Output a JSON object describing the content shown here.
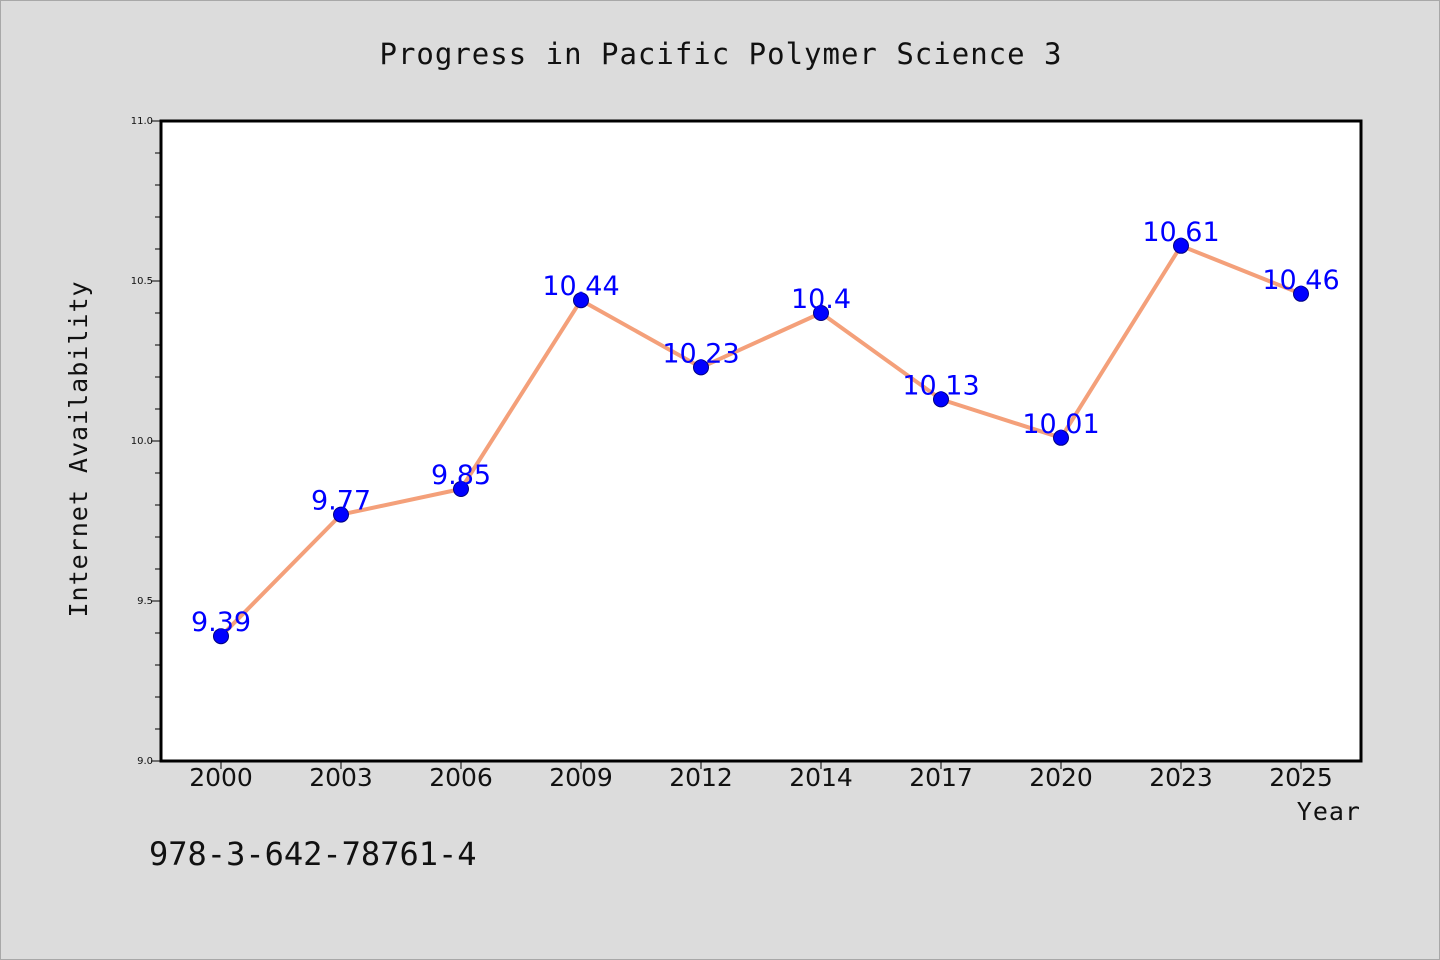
{
  "chart_data": {
    "type": "line",
    "title": "Progress in Pacific Polymer Science 3",
    "xlabel": "Year",
    "ylabel": "Internet Availability",
    "categories": [
      "2000",
      "2003",
      "2006",
      "2009",
      "2012",
      "2014",
      "2017",
      "2020",
      "2023",
      "2025"
    ],
    "series": [
      {
        "values": [
          9.39,
          9.77,
          9.85,
          10.44,
          10.23,
          10.4,
          10.13,
          10.01,
          10.61,
          10.46
        ],
        "labels": [
          "9.39",
          "9.77",
          "9.85",
          "10.44",
          "10.23",
          "10.4",
          "10.13",
          "10.01",
          "10.61",
          "10.46"
        ],
        "line_color": "#f4a07a",
        "marker_color": "#0000ff"
      }
    ],
    "ylim": [
      9.0,
      11.0
    ],
    "yticks": [
      "9.0",
      "9.5",
      "10.0",
      "10.5",
      "11.0"
    ],
    "grid": false,
    "legend": "none"
  },
  "footer": {
    "isbn": "978-3-642-78761-4"
  },
  "colors": {
    "background": "#dcdcdc",
    "plot_background": "#ffffff",
    "line": "#f4a07a",
    "marker": "#0000ff",
    "data_label": "#0000ff"
  }
}
